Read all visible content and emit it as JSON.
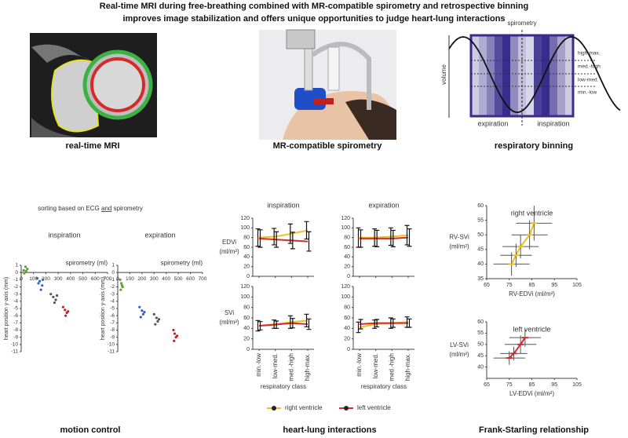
{
  "header": {
    "lines": [
      "Real-time MRI during free-breathing combined with MR-compatible spirometry and retrospective binning",
      "improves image stabilization and offers unique opportunities to judge heart-lung interactions"
    ]
  },
  "captions": {
    "mri": "real-time MRI",
    "spirometry": "MR-compatible spirometry",
    "binning": "respiratory binning",
    "motion": "motion control",
    "heart_lung": "heart-lung interactions",
    "frank_starling": "Frank-Starling relationship"
  },
  "binning": {
    "title": "spirometry",
    "ylabel": "volume",
    "levels": [
      "high-max.",
      "med.-high",
      "low-med.",
      "min.-low"
    ],
    "phases": [
      "expiration",
      "inspiration"
    ]
  },
  "motion_note": [
    "sorting based on ECG ",
    "and",
    " spirometry"
  ],
  "chart_data": [
    {
      "type": "scatter",
      "title": "inspiration",
      "xlabel": "spirometry (ml)",
      "ylabel": "heart position y-axis (mm)",
      "xlim": [
        0,
        700
      ],
      "xticks": [
        0,
        100,
        200,
        300,
        400,
        500,
        600,
        700
      ],
      "ylim": [
        -11,
        1
      ],
      "yticks": [
        1,
        0,
        -1,
        -2,
        -3,
        -4,
        -5,
        -6,
        -7,
        -8,
        -9,
        -10,
        -11
      ],
      "series": [
        {
          "color": "#5aa02c",
          "x": [
            20,
            35,
            50,
            25,
            40
          ],
          "values": [
            0.3,
            0.8,
            0.5,
            -0.1,
            0.2
          ]
        },
        {
          "color": "#3060c0",
          "x": [
            130,
            150,
            170,
            160,
            140,
            175
          ],
          "values": [
            -0.8,
            -1.2,
            -1.8,
            -2.4,
            -1.5,
            -1
          ]
        },
        {
          "color": "#555555",
          "x": [
            240,
            260,
            280,
            270,
            290
          ],
          "values": [
            -3,
            -3.4,
            -3.8,
            -4.2,
            -3.2
          ]
        },
        {
          "color": "#c8202a",
          "x": [
            340,
            355,
            370,
            360,
            380
          ],
          "values": [
            -4.8,
            -5.2,
            -5.6,
            -6,
            -5.4
          ]
        }
      ]
    },
    {
      "type": "scatter",
      "title": "expiration",
      "xlabel": "spirometry (ml)",
      "ylabel": "heart position y-axis (mm)",
      "xlim": [
        0,
        700
      ],
      "xticks": [
        0,
        100,
        200,
        300,
        400,
        500,
        600,
        700
      ],
      "ylim": [
        -11,
        1
      ],
      "yticks": [
        1,
        0,
        -1,
        -2,
        -3,
        -4,
        -5,
        -6,
        -7,
        -8,
        -9,
        -10,
        -11
      ],
      "series": [
        {
          "color": "#5aa02c",
          "x": [
            20,
            30,
            40,
            25,
            35
          ],
          "values": [
            -1,
            -1.5,
            -2,
            -2.4,
            -1.8
          ]
        },
        {
          "color": "#3060c0",
          "x": [
            180,
            200,
            210,
            190,
            220
          ],
          "values": [
            -4.8,
            -5.3,
            -5.8,
            -6.2,
            -5.5
          ]
        },
        {
          "color": "#555555",
          "x": [
            300,
            320,
            330,
            310,
            340
          ],
          "values": [
            -5.8,
            -6.3,
            -6.8,
            -7.2,
            -6.5
          ]
        },
        {
          "color": "#c8202a",
          "x": [
            460,
            470,
            480,
            465,
            490
          ],
          "values": [
            -8,
            -8.5,
            -9,
            -9.5,
            -8.8
          ]
        }
      ]
    },
    {
      "type": "line",
      "categories": [
        "min.-low",
        "low-med.",
        "med.-high",
        "high-max."
      ],
      "xlabel": "respiratory class",
      "legend": [
        {
          "name": "right ventricle",
          "color": "#f0c020"
        },
        {
          "name": "left ventricle",
          "color": "#d42a2a"
        }
      ],
      "panels": [
        {
          "title": "inspiration",
          "ylabel": [
            "EDVi",
            "(ml/m²)"
          ],
          "ylim": [
            0,
            120
          ],
          "yticks": [
            0,
            20,
            40,
            60,
            80,
            100,
            120
          ],
          "series": [
            {
              "values": [
                80,
                82,
                88,
                95
              ],
              "errors": [
                18,
                17,
                20,
                18
              ]
            },
            {
              "values": [
                78,
                76,
                74,
                72
              ],
              "errors": [
                18,
                16,
                17,
                20
              ]
            }
          ]
        },
        {
          "title": "expiration",
          "ylim": [
            0,
            120
          ],
          "yticks": [
            0,
            20,
            40,
            60,
            80,
            100,
            120
          ],
          "series": [
            {
              "values": [
                80,
                80,
                82,
                85
              ],
              "errors": [
                20,
                18,
                18,
                20
              ]
            },
            {
              "values": [
                78,
                78,
                78,
                80
              ],
              "errors": [
                18,
                17,
                17,
                18
              ]
            }
          ]
        },
        {
          "ylabel": [
            "SVi",
            "(ml/m²)"
          ],
          "ylim": [
            0,
            120
          ],
          "yticks": [
            0,
            20,
            40,
            60,
            80,
            100,
            120
          ],
          "series": [
            {
              "values": [
                45,
                48,
                52,
                55
              ],
              "errors": [
                10,
                8,
                12,
                12
              ]
            },
            {
              "values": [
                45,
                47,
                50,
                48
              ],
              "errors": [
                8,
                7,
                9,
                10
              ]
            }
          ]
        },
        {
          "ylim": [
            0,
            120
          ],
          "yticks": [
            0,
            20,
            40,
            60,
            80,
            100,
            120
          ],
          "series": [
            {
              "values": [
                42,
                48,
                50,
                52
              ],
              "errors": [
                10,
                8,
                10,
                10
              ]
            },
            {
              "values": [
                48,
                50,
                50,
                50
              ],
              "errors": [
                9,
                7,
                8,
                8
              ]
            }
          ]
        }
      ]
    },
    {
      "type": "scatter",
      "title": "right ventricle",
      "xlabel": "RV-EDVi (ml/m²)",
      "ylabel": [
        "RV-SVi",
        "(ml/m²)"
      ],
      "xlim": [
        65,
        105
      ],
      "xticks": [
        65,
        75,
        85,
        95,
        105
      ],
      "ylim": [
        35,
        60
      ],
      "yticks": [
        35,
        40,
        45,
        50,
        55,
        60
      ],
      "color": "#f0c020",
      "x": [
        76,
        78,
        80,
        84,
        86
      ],
      "values": [
        40,
        43,
        46,
        50,
        54
      ],
      "xerr": [
        8,
        7,
        8,
        8,
        8
      ],
      "yerr": [
        4,
        4,
        4,
        5,
        6
      ]
    },
    {
      "type": "scatter",
      "title": "left ventricle",
      "xlabel": "LV-EDVi (ml/m²)",
      "ylabel": [
        "LV-SVi",
        "(ml/m²)"
      ],
      "xlim": [
        65,
        105
      ],
      "xticks": [
        65,
        75,
        85,
        95,
        105
      ],
      "ylim": [
        35,
        60
      ],
      "yticks": [
        40,
        45,
        50,
        55,
        60
      ],
      "color": "#d42a2a",
      "x": [
        75,
        77,
        80,
        82
      ],
      "values": [
        44,
        46,
        50,
        53
      ],
      "xerr": [
        7,
        6,
        7,
        7
      ],
      "yerr": [
        3,
        3,
        4,
        4
      ]
    }
  ]
}
